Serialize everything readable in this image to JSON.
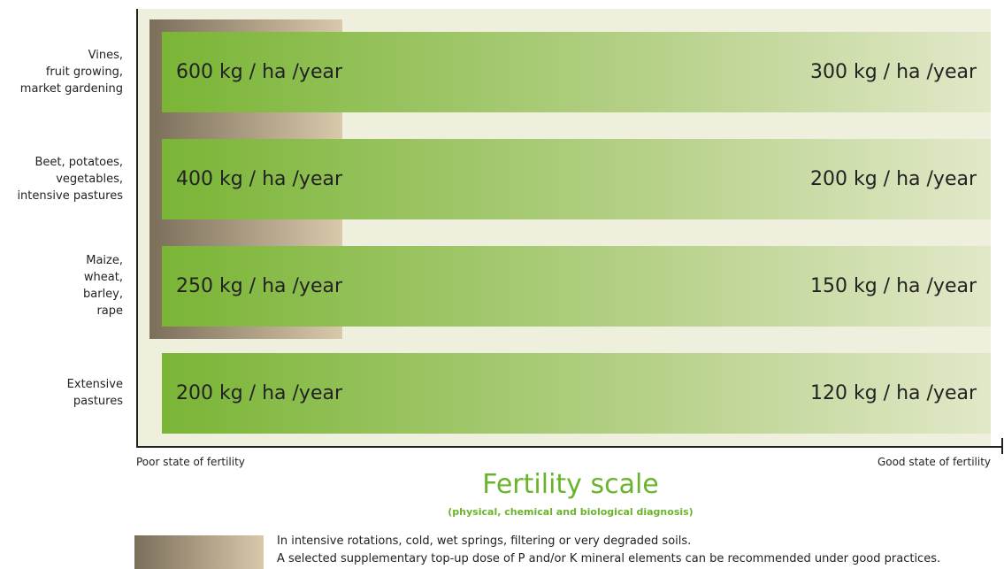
{
  "rows": [
    {
      "label_lines": [
        "Vines,",
        "fruit growing,",
        "market gardening"
      ],
      "left": "600 kg / ha /year",
      "right": "300 kg / ha /year"
    },
    {
      "label_lines": [
        "Beet, potatoes,",
        "vegetables,",
        "intensive pastures"
      ],
      "left": "400 kg / ha /year",
      "right": "200 kg / ha /year"
    },
    {
      "label_lines": [
        "Maize,",
        "wheat,",
        "barley,",
        "rape"
      ],
      "left": "250 kg / ha /year",
      "right": "150 kg / ha /year"
    },
    {
      "label_lines": [
        "Extensive",
        "pastures"
      ],
      "left": "200 kg / ha /year",
      "right": "120 kg / ha /year"
    }
  ],
  "axis": {
    "left_label": "Poor state of fertility",
    "right_label": "Good state of fertility"
  },
  "title": "Fertility scale",
  "subtitle": "(physical, chemical and biological diagnosis)",
  "legend": {
    "lines": [
      "In intensive rotations, cold, wet springs, filtering or very degraded soils.",
      "A selected supplementary top-up dose of P and/or K mineral elements can be recommended under good practices."
    ]
  }
}
